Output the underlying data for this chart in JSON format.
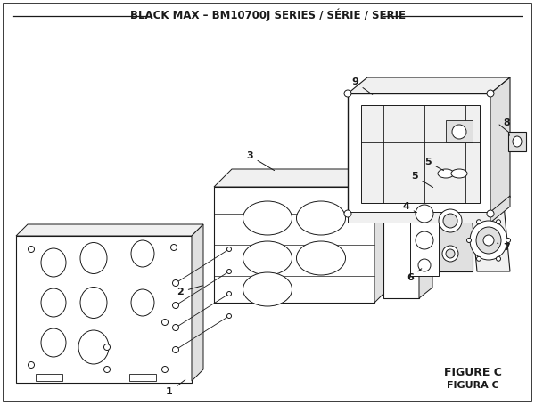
{
  "title": "BLACK MAX – BM10700J SERIES / SÉRIE / SERIE",
  "figure_label": "FIGURE C",
  "figura_label": "FIGURA C",
  "bg_color": "#ffffff",
  "lc": "#1a1a1a",
  "title_fontsize": 8.5,
  "label_fontsize": 8,
  "fig_fontsize": 9
}
